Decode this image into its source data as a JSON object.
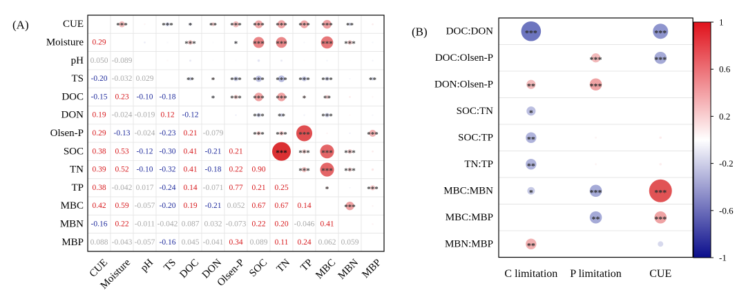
{
  "chart_data": [
    {
      "type": "heatmap",
      "panel_label": "(A)",
      "variables": [
        "CUE",
        "Moisture",
        "pH",
        "TS",
        "DOC",
        "DON",
        "Olsen-P",
        "SOC",
        "TN",
        "TP",
        "MBC",
        "MBN",
        "MBP"
      ],
      "lower_triangle_r": [
        [],
        [
          "0.29"
        ],
        [
          "0.050",
          "-0.089"
        ],
        [
          "-0.20",
          "-0.032",
          "0.029"
        ],
        [
          "-0.15",
          "0.23",
          "-0.10",
          "-0.18"
        ],
        [
          "0.19",
          "-0.024",
          "-0.019",
          "0.12",
          "-0.12"
        ],
        [
          "0.29",
          "-0.13",
          "-0.024",
          "-0.23",
          "0.21",
          "-0.079"
        ],
        [
          "0.38",
          "0.53",
          "-0.12",
          "-0.30",
          "0.41",
          "-0.21",
          "0.21"
        ],
        [
          "0.39",
          "0.52",
          "-0.10",
          "-0.32",
          "0.41",
          "-0.18",
          "0.22",
          "0.90"
        ],
        [
          "0.38",
          "-0.042",
          "0.017",
          "-0.24",
          "0.14",
          "-0.071",
          "0.77",
          "0.21",
          "0.25"
        ],
        [
          "0.42",
          "0.59",
          "-0.057",
          "-0.20",
          "0.19",
          "-0.21",
          "0.052",
          "0.67",
          "0.67",
          "0.14"
        ],
        [
          "-0.16",
          "0.22",
          "-0.011",
          "-0.042",
          "0.087",
          "0.032",
          "-0.073",
          "0.22",
          "0.20",
          "-0.046",
          "0.41"
        ],
        [
          "0.088",
          "-0.043",
          "-0.057",
          "-0.16",
          "0.045",
          "-0.041",
          "0.34",
          "0.089",
          "0.11",
          "0.24",
          "0.062",
          "0.059"
        ]
      ],
      "upper_triangle_sig": [
        [
          "",
          "***",
          "",
          "***",
          "*",
          "**",
          "***",
          "***",
          "***",
          "***",
          "***",
          "**",
          ""
        ],
        [
          "",
          "",
          "",
          "",
          "***",
          "",
          "*",
          "***",
          "***",
          "",
          "***",
          "***",
          ""
        ],
        [
          "",
          "",
          "",
          "",
          "",
          "",
          "",
          "",
          "",
          "",
          "",
          "",
          ""
        ],
        [
          "",
          "",
          "",
          "",
          "**",
          "*",
          "***",
          "***",
          "***",
          "***",
          "***",
          "",
          "**"
        ],
        [
          "",
          "",
          "",
          "",
          "",
          "*",
          "***",
          "***",
          "***",
          "*",
          "**",
          "",
          ""
        ],
        [
          "",
          "",
          "",
          "",
          "",
          "",
          "",
          "***",
          "**",
          "",
          "***",
          "",
          ""
        ],
        [
          "",
          "",
          "",
          "",
          "",
          "",
          "",
          "***",
          "***",
          "***",
          "",
          "",
          "***"
        ],
        [
          "",
          "",
          "",
          "",
          "",
          "",
          "",
          "",
          "***",
          "***",
          "***",
          "***",
          ""
        ],
        [
          "",
          "",
          "",
          "",
          "",
          "",
          "",
          "",
          "",
          "***",
          "***",
          "***",
          ""
        ],
        [
          "",
          "",
          "",
          "",
          "",
          "",
          "",
          "",
          "",
          "",
          "*",
          "",
          "***"
        ],
        [
          "",
          "",
          "",
          "",
          "",
          "",
          "",
          "",
          "",
          "",
          "",
          "***",
          ""
        ],
        [
          "",
          "",
          "",
          "",
          "",
          "",
          "",
          "",
          "",
          "",
          "",
          "",
          ""
        ],
        [
          "",
          "",
          "",
          "",
          "",
          "",
          "",
          "",
          "",
          "",
          "",
          "",
          ""
        ]
      ]
    },
    {
      "type": "heatmap",
      "panel_label": "(B)",
      "rows": [
        "DOC:DON",
        "DOC:Olsen-P",
        "DON:Olsen-P",
        "SOC:TN",
        "SOC:TP",
        "TN:TP",
        "MBC:MBN",
        "MBC:MBP",
        "MBN:MBP"
      ],
      "columns": [
        "C limitation",
        "P limitation",
        "CUE"
      ],
      "r": [
        [
          -0.65,
          0.0,
          -0.5
        ],
        [
          0.0,
          0.3,
          -0.4
        ],
        [
          0.3,
          0.4,
          0.0
        ],
        [
          -0.3,
          0.0,
          0.0
        ],
        [
          -0.35,
          0.05,
          0.08
        ],
        [
          -0.35,
          0.05,
          0.08
        ],
        [
          -0.25,
          -0.4,
          0.75
        ],
        [
          0.0,
          -0.4,
          0.4
        ],
        [
          0.35,
          0.0,
          -0.18
        ]
      ],
      "sig": [
        [
          "***",
          "",
          "***"
        ],
        [
          "",
          "***",
          "***"
        ],
        [
          "**",
          "***",
          ""
        ],
        [
          "*",
          "",
          ""
        ],
        [
          "**",
          "",
          ""
        ],
        [
          "**",
          "",
          ""
        ],
        [
          "*",
          "***",
          "***"
        ],
        [
          "",
          "**",
          "***"
        ],
        [
          "**",
          "",
          ""
        ]
      ]
    }
  ],
  "colorbar": {
    "max_label": "1",
    "min_label": "-1",
    "ticks": [
      "1",
      "0.6",
      "0.2",
      "-0.2",
      "-0.6",
      "-1"
    ],
    "tick_values": [
      1,
      0.6,
      0.2,
      -0.2,
      -0.6,
      -1
    ],
    "range": [
      -1,
      1
    ]
  },
  "colors": {
    "positive": "#d7191c",
    "negative": "#1e2a9c",
    "grid": "#e4e4e4"
  }
}
